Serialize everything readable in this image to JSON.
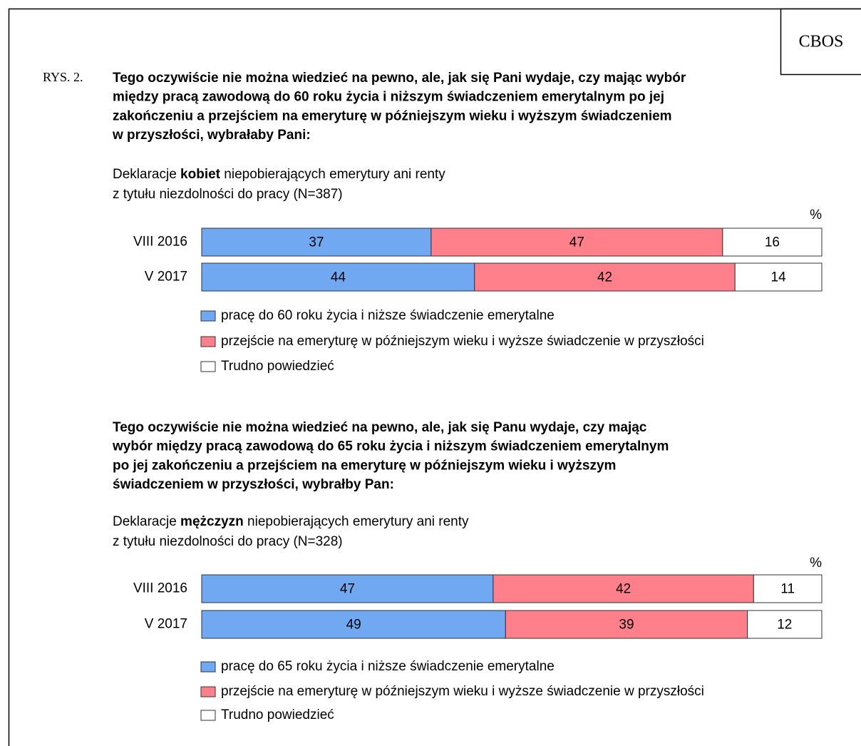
{
  "badge": "CBOS",
  "figure_label": "RYS. 2.",
  "chart_data": [
    {
      "type": "bar",
      "orientation": "horizontal",
      "stacked": true,
      "title_lines": [
        "Tego oczywiście nie można wiedzieć na pewno, ale, jak się Pani wydaje, czy mając wybór",
        "między pracą zawodową do 60 roku życia i niższym świadczeniem emerytalnym po jej",
        "zakończeniu a przejściem na emeryturę w późniejszym wieku i wyższym świadczeniem",
        "w przyszłości, wybrałaby Pani:"
      ],
      "subtitle_prefix": "Deklaracje",
      "subtitle_bold": "kobiet",
      "subtitle_suffix": "niepobierających emerytury ani renty",
      "subtitle_line2": "z tytułu niezdolności do pracy (N=387)",
      "unit": "%",
      "categories": [
        "VIII 2016",
        "V 2017"
      ],
      "xlim": [
        0,
        100
      ],
      "series": [
        {
          "name": "pracę do 60 roku życia i niższe świadczenie emerytalne",
          "color": "#70a9f2",
          "values": [
            37,
            44
          ]
        },
        {
          "name": "przejście na emeryturę w późniejszym wieku i wyższe świadczenie w przyszłości",
          "color": "#ff7f8b",
          "values": [
            47,
            42
          ]
        },
        {
          "name": "Trudno powiedzieć",
          "color": "#ffffff",
          "values": [
            16,
            14
          ]
        }
      ]
    },
    {
      "type": "bar",
      "orientation": "horizontal",
      "stacked": true,
      "title_lines": [
        "Tego oczywiście nie można wiedzieć na pewno, ale, jak się Panu wydaje, czy mając",
        "wybór między pracą zawodową do 65 roku życia i niższym świadczeniem emerytalnym",
        "po jej zakończeniu a przejściem na emeryturę w późniejszym wieku i wyższym",
        "świadczeniem w przyszłości, wybrałby Pan:"
      ],
      "subtitle_prefix": "Deklaracje",
      "subtitle_bold": "mężczyzn",
      "subtitle_suffix": "niepobierających emerytury ani renty",
      "subtitle_line2": "z tytułu niezdolności do pracy (N=328)",
      "unit": "%",
      "categories": [
        "VIII 2016",
        "V 2017"
      ],
      "xlim": [
        0,
        100
      ],
      "series": [
        {
          "name": "pracę do 65 roku życia i niższe świadczenie emerytalne",
          "color": "#70a9f2",
          "values": [
            47,
            49
          ]
        },
        {
          "name": "przejście na emeryturę w późniejszym wieku i wyższe świadczenie w przyszłości",
          "color": "#ff7f8b",
          "values": [
            42,
            39
          ]
        },
        {
          "name": "Trudno powiedzieć",
          "color": "#ffffff",
          "values": [
            11,
            12
          ]
        }
      ]
    }
  ]
}
